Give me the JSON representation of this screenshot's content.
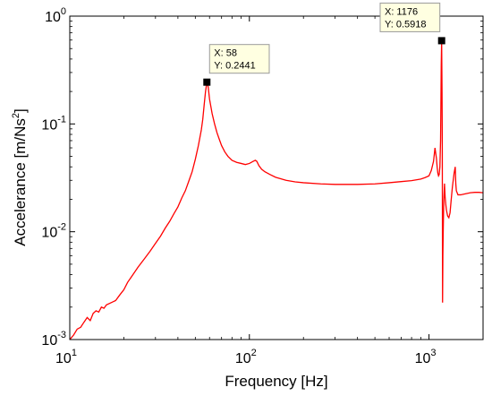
{
  "chart_data": {
    "type": "line",
    "xscale": "log",
    "yscale": "log",
    "xlim": [
      10,
      2000
    ],
    "ylim": [
      0.001,
      1
    ],
    "xlabel": "Frequency [Hz]",
    "ylabel_main": "Accelerance [m/Ns",
    "ylabel_sup": "2",
    "ylabel_end": "]",
    "x_ticks": [
      {
        "value": 10,
        "base": "10",
        "exp": "1"
      },
      {
        "value": 100,
        "base": "10",
        "exp": "2"
      },
      {
        "value": 1000,
        "base": "10",
        "exp": "3"
      }
    ],
    "y_ticks": [
      {
        "value": 0.001,
        "base": "10",
        "exp": "-3"
      },
      {
        "value": 0.01,
        "base": "10",
        "exp": "-2"
      },
      {
        "value": 0.1,
        "base": "10",
        "exp": "-1"
      },
      {
        "value": 1,
        "base": "10",
        "exp": "0"
      }
    ],
    "grid": false,
    "line_color": "#ff0000",
    "series": [
      {
        "x": [
          10,
          10.5,
          11,
          11.5,
          12,
          12.5,
          13,
          13.5,
          14,
          14.5,
          15,
          15.5,
          16,
          17,
          18,
          19,
          20,
          21,
          22,
          24,
          26,
          28,
          30,
          32,
          34,
          36,
          38,
          40,
          42,
          44,
          46,
          48,
          50,
          52,
          54,
          55,
          56,
          57,
          58,
          59,
          60,
          62,
          64,
          66,
          68,
          70,
          73,
          76,
          80,
          85,
          90,
          95,
          100,
          105,
          108,
          110,
          113,
          117,
          122,
          130,
          140,
          160,
          180,
          200,
          250,
          300,
          400,
          500,
          600,
          700,
          800,
          900,
          950,
          1000,
          1030,
          1060,
          1080,
          1100,
          1110,
          1120,
          1130,
          1140,
          1150,
          1160,
          1165,
          1170,
          1176,
          1182,
          1186,
          1190,
          1195,
          1200,
          1205,
          1210,
          1220,
          1230,
          1240,
          1250,
          1270,
          1290,
          1310,
          1330,
          1350,
          1380,
          1400,
          1410,
          1420,
          1450,
          1500,
          1600,
          1700,
          1800,
          1900,
          2000
        ],
        "y": [
          0.001,
          0.0011,
          0.00125,
          0.0013,
          0.00145,
          0.0016,
          0.0015,
          0.00175,
          0.00185,
          0.0018,
          0.002,
          0.00195,
          0.0021,
          0.0022,
          0.0023,
          0.0026,
          0.0029,
          0.0034,
          0.0038,
          0.0047,
          0.0056,
          0.0066,
          0.0078,
          0.0091,
          0.0108,
          0.0125,
          0.0147,
          0.017,
          0.0205,
          0.024,
          0.0295,
          0.036,
          0.047,
          0.063,
          0.088,
          0.11,
          0.15,
          0.2,
          0.2441,
          0.22,
          0.17,
          0.125,
          0.1,
          0.083,
          0.072,
          0.063,
          0.055,
          0.05,
          0.046,
          0.044,
          0.043,
          0.042,
          0.043,
          0.045,
          0.046,
          0.045,
          0.041,
          0.038,
          0.036,
          0.034,
          0.032,
          0.03,
          0.029,
          0.0285,
          0.0278,
          0.0275,
          0.0275,
          0.0278,
          0.0285,
          0.0292,
          0.0298,
          0.0308,
          0.0318,
          0.033,
          0.037,
          0.045,
          0.06,
          0.048,
          0.04,
          0.035,
          0.033,
          0.034,
          0.04,
          0.07,
          0.15,
          0.35,
          0.5918,
          0.2,
          0.06,
          0.0022,
          0.006,
          0.01,
          0.015,
          0.02,
          0.028,
          0.021,
          0.018,
          0.016,
          0.014,
          0.0135,
          0.015,
          0.02,
          0.026,
          0.035,
          0.04,
          0.028,
          0.024,
          0.022,
          0.022,
          0.0225,
          0.023,
          0.0232,
          0.0232,
          0.023
        ]
      }
    ],
    "markers": [
      {
        "x": 58,
        "y": 0.2441,
        "label_x": "X: 58",
        "label_y": "Y: 0.2441"
      },
      {
        "x": 1176,
        "y": 0.5918,
        "label_x": "X: 1176",
        "label_y": "Y: 0.5918"
      }
    ]
  }
}
